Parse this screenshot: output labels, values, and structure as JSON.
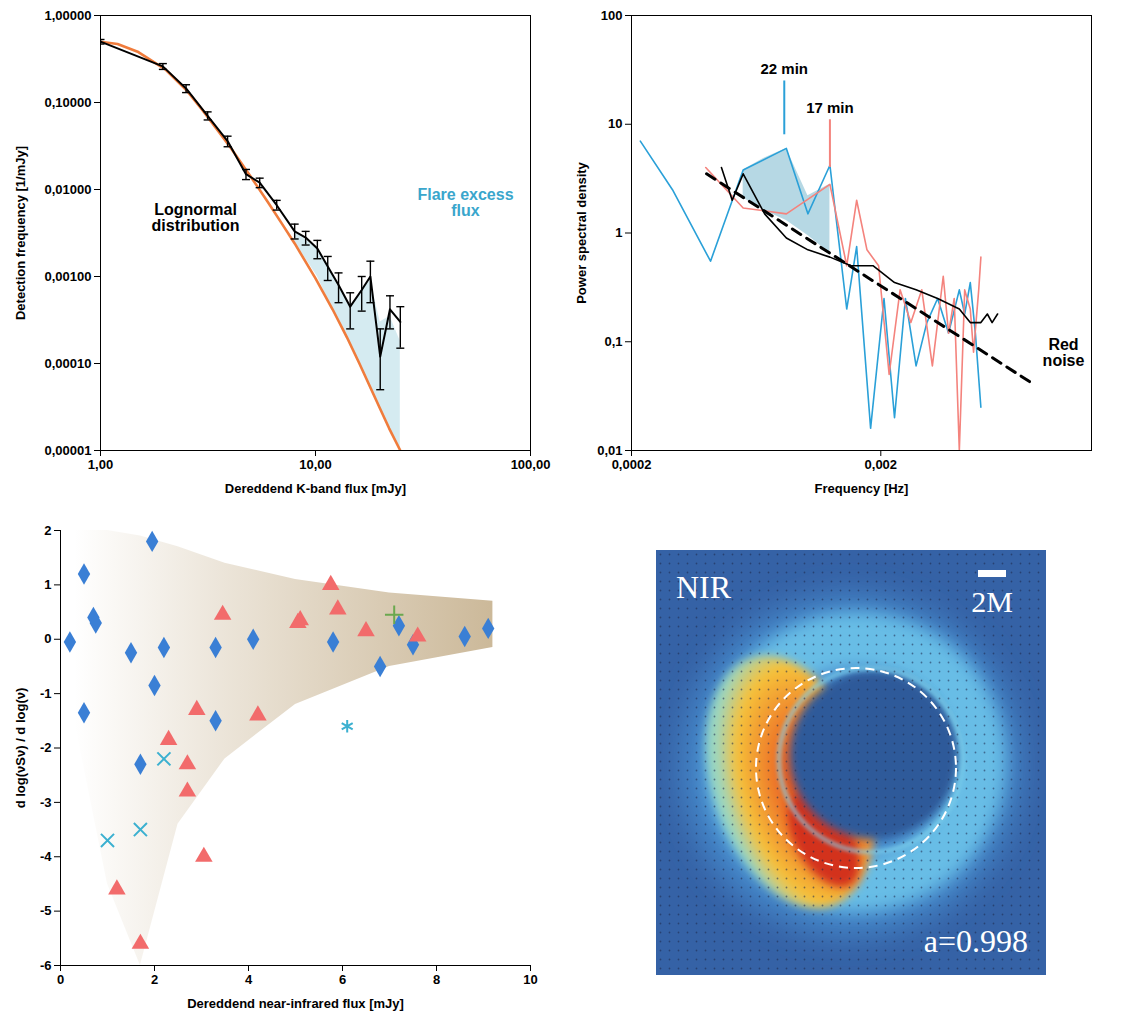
{
  "chart_data": [
    {
      "type": "line",
      "log": true,
      "x_label": "Dereddend K-band flux [mJy]",
      "y_label": "Detection frequency [1/mJy]",
      "xlim": [
        1,
        100
      ],
      "ylim": [
        1e-05,
        1
      ],
      "xticks": [
        {
          "value": 1,
          "label": "1,00"
        },
        {
          "value": 10,
          "label": "10,00"
        },
        {
          "value": 100,
          "label": "100,00"
        }
      ],
      "yticks": [
        {
          "value": 1e-05,
          "label": "0,00001"
        },
        {
          "value": 0.0001,
          "label": "0,00010"
        },
        {
          "value": 0.001,
          "label": "0,00100"
        },
        {
          "value": 0.01,
          "label": "0,01000"
        },
        {
          "value": 0.1,
          "label": "0,10000"
        },
        {
          "value": 1,
          "label": "1,00000"
        }
      ],
      "excess_area": {
        "color": "#d3eaf0",
        "x": [
          8,
          10.2,
          12.8,
          14.5,
          16.4,
          18,
          20,
          22.2,
          24.8
        ],
        "low": [
          0.0025,
          0.001,
          0.0003,
          0.00016,
          9e-05,
          5e-05,
          3e-05,
          1.7e-05,
          1e-05
        ],
        "high": [
          0.0033,
          0.0021,
          0.0008,
          0.00045,
          0.0007,
          0.0009,
          0.0003,
          0.00035,
          0.00018
        ]
      },
      "series": [
        {
          "color": "#f07c3c",
          "x": [
            1,
            1.2,
            1.5,
            2,
            2.5,
            3,
            4,
            5,
            6,
            7,
            8,
            10,
            12,
            14,
            16,
            18,
            20,
            22,
            24.8
          ],
          "values": [
            0.5,
            0.47,
            0.38,
            0.24,
            0.14,
            0.08,
            0.031,
            0.014,
            0.0072,
            0.004,
            0.0024,
            0.00095,
            0.00042,
            0.0002,
            0.0001,
            5.3e-05,
            3e-05,
            1.8e-05,
            1e-05
          ]
        },
        {
          "color": "#000000",
          "x": [
            1,
            1.95,
            2.5,
            3.15,
            3.9,
            4.75,
            5.5,
            6.6,
            8,
            9,
            10.2,
            11.4,
            12.8,
            14.5,
            16.4,
            18,
            20,
            22.2,
            24.8
          ],
          "values": [
            0.5,
            0.26,
            0.145,
            0.07,
            0.036,
            0.015,
            0.012,
            0.0066,
            0.0033,
            0.0028,
            0.0021,
            0.0013,
            0.0008,
            0.00045,
            0.0007,
            0.001,
            0.00012,
            0.00042,
            0.0003
          ],
          "error_low": [
            0.47,
            0.24,
            0.13,
            0.063,
            0.031,
            0.013,
            0.0105,
            0.0058,
            0.0027,
            0.0023,
            0.0016,
            0.0009,
            0.0005,
            0.00025,
            0.0004,
            0.0005,
            5e-05,
            0.00025,
            0.00015
          ],
          "error_high": [
            0.53,
            0.28,
            0.16,
            0.078,
            0.041,
            0.017,
            0.0135,
            0.0075,
            0.004,
            0.0033,
            0.0026,
            0.0017,
            0.0011,
            0.00065,
            0.001,
            0.0015,
            0.00025,
            0.0006,
            0.00045
          ]
        }
      ],
      "annotations": [
        {
          "text": "Lognormal distribution",
          "color": "#000000"
        },
        {
          "text": "Flare excess flux",
          "color": "#3aa6cc"
        }
      ]
    },
    {
      "type": "line",
      "log": true,
      "x_label": "Frequency [Hz]",
      "y_label": "Power spectral density",
      "xlim": [
        0.0002,
        0.014
      ],
      "ylim": [
        0.01,
        100
      ],
      "xticks": [
        {
          "value": 0.0002,
          "label": "0,0002"
        },
        {
          "value": 0.002,
          "label": "0,002"
        }
      ],
      "yticks": [
        {
          "value": 0.01,
          "label": "0,01"
        },
        {
          "value": 0.1,
          "label": "0,1"
        },
        1,
        10,
        100
      ],
      "shaded_area": {
        "color": "#8fc3d6",
        "x": [
          0.000561,
          0.000684,
          0.000836,
          0.00102,
          0.00125
        ],
        "low": [
          2.1,
          1.6,
          1.3,
          0.95,
          0.65
        ],
        "high": [
          3.8,
          4.9,
          6,
          2.2,
          2.8
        ]
      },
      "series": [
        {
          "color": "#2aa0d8",
          "x": [
            0.000217,
            0.000292,
            0.000415,
            0.000561,
            0.000836,
            0.00102,
            0.00125,
            0.00146,
            0.0016,
            0.00182,
            0.00206,
            0.00227,
            0.00251,
            0.00277,
            0.00306,
            0.00338,
            0.00374,
            0.00413,
            0.00434,
            0.00457,
            0.00479,
            0.00504
          ],
          "values": [
            7,
            2.5,
            0.55,
            3.8,
            6,
            1.5,
            4.2,
            0.2,
            0.75,
            0.016,
            0.25,
            0.02,
            0.25,
            0.06,
            0.15,
            0.25,
            0.12,
            0.3,
            0.18,
            0.35,
            0.12,
            0.025
          ]
        },
        {
          "color": "#f4837d",
          "x": [
            0.000397,
            0.000561,
            0.000836,
            0.00125,
            0.00146,
            0.0016,
            0.00176,
            0.00196,
            0.00216,
            0.00239,
            0.00264,
            0.00292,
            0.00322,
            0.00356,
            0.00374,
            0.00394,
            0.00413,
            0.00434,
            0.00457,
            0.00471,
            0.00494,
            0.00504
          ],
          "values": [
            4,
            1.7,
            1.5,
            2.8,
            0.5,
            2,
            0.7,
            0.5,
            0.05,
            0.3,
            0.15,
            0.3,
            0.06,
            0.4,
            0.12,
            0.25,
            0.01,
            0.3,
            0.2,
            0.08,
            0.3,
            0.6
          ]
        },
        {
          "color": "#000000",
          "x": [
            0.000459,
            0.000507,
            0.000561,
            0.000684,
            0.000836,
            0.00102,
            0.00125,
            0.00152,
            0.00186,
            0.00227,
            0.00277,
            0.00338,
            0.00413,
            0.00457,
            0.00504,
            0.00535,
            0.00559,
            0.00588
          ],
          "values": [
            4,
            2,
            3.5,
            1.5,
            0.9,
            0.7,
            0.6,
            0.5,
            0.5,
            0.35,
            0.3,
            0.25,
            0.2,
            0.15,
            0.15,
            0.18,
            0.15,
            0.18
          ]
        },
        {
          "color": "#000000",
          "line_style": "dashed",
          "x": [
            0.0004,
            0.0083
          ],
          "values": [
            3.5,
            0.04
          ]
        }
      ],
      "markers": [
        {
          "text": "22 min",
          "color": "#2aa0d8",
          "x": 0.00082,
          "y_start": 8,
          "y_end": 25
        },
        {
          "text": "17 min",
          "color": "#f4837d",
          "x": 0.00125,
          "y_start": 4,
          "y_end": 11
        }
      ],
      "annotations": [
        {
          "text": "Red noise",
          "color": "#000000"
        }
      ]
    },
    {
      "type": "scatter",
      "x_label": "Dereddend near-infrared flux [mJy]",
      "y_label": "d log(νSν) / d log(ν)",
      "xlim": [
        0,
        10
      ],
      "ylim": [
        -6,
        2
      ],
      "xticks": [
        0,
        2,
        4,
        6,
        8,
        10
      ],
      "yticks": [
        -6,
        -5,
        -4,
        -3,
        -2,
        -1,
        0,
        1,
        2
      ],
      "shaded_area": {
        "color": "#c9b594",
        "x": [
          0.3,
          1,
          1.7,
          2.5,
          3.5,
          5,
          7,
          9.2
        ],
        "low": [
          -1.5,
          -4.5,
          -6,
          -3.4,
          -2.2,
          -1.2,
          -0.5,
          -0.15
        ],
        "high": [
          2,
          2,
          1.9,
          1.7,
          1.4,
          1.1,
          0.85,
          0.7
        ]
      },
      "series": [
        {
          "marker": "diamond",
          "color": "#3a7fd5",
          "x": [
            0.2,
            0.5,
            0.5,
            0.7,
            0.75,
            1.5,
            1.7,
            1.95,
            2,
            2.2,
            3.3,
            3.3,
            4.1,
            5.8,
            6.8,
            7.2,
            7.5,
            8.6,
            9.1
          ],
          "y": [
            -0.05,
            1.2,
            -1.35,
            0.4,
            0.3,
            -0.25,
            -2.3,
            1.8,
            -0.85,
            -0.15,
            -0.15,
            -1.5,
            0,
            -0.05,
            -0.5,
            0.25,
            -0.1,
            0.05,
            0.2
          ]
        },
        {
          "marker": "triangle",
          "color": "#f26b6b",
          "x": [
            1.2,
            1.7,
            2.3,
            2.7,
            2.7,
            2.9,
            3.05,
            3.45,
            4.2,
            5.05,
            5.1,
            5.75,
            5.9,
            6.5,
            7.6
          ],
          "y": [
            -4.6,
            -5.6,
            -1.85,
            -2.3,
            -2.8,
            -1.3,
            -4,
            0.45,
            -1.4,
            0.3,
            0.35,
            1,
            0.55,
            0.15,
            0.05
          ]
        },
        {
          "marker": "x",
          "color": "#3bb0d0",
          "x": [
            1,
            1.7,
            2.2
          ],
          "y": [
            -3.7,
            -3.5,
            -2.2
          ]
        },
        {
          "marker": "asterisk",
          "color": "#3bb0d0",
          "x": [
            6.1
          ],
          "y": [
            -1.6
          ]
        },
        {
          "marker": "plus",
          "color": "#6aa84f",
          "x": [
            7.1
          ],
          "y": [
            0.45
          ]
        }
      ]
    },
    {
      "type": "image",
      "title": "NIR",
      "scale_bar_label": "2M",
      "annotation": "a=0.998"
    }
  ]
}
